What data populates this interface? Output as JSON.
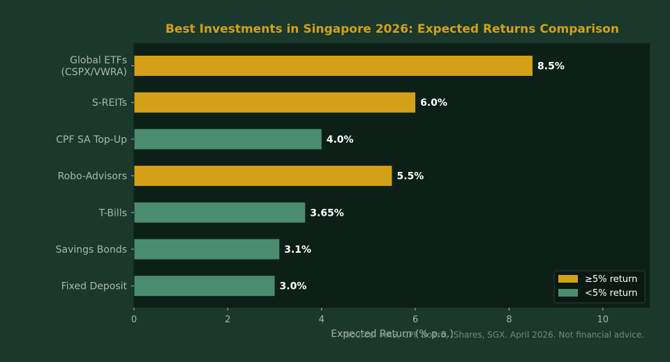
{
  "chart_data": {
    "type": "bar",
    "orientation": "horizontal",
    "title": "Best Investments in Singapore 2026: Expected Returns Comparison",
    "xlabel": "Expected Return (% p.a.)",
    "ylabel": "",
    "xlim": [
      0,
      11
    ],
    "xticks": [
      "0",
      "2",
      "4",
      "6",
      "8",
      "10"
    ],
    "grid": false,
    "legend_position": "bottom-right",
    "categories": [
      "Global ETFs\n(CSPX/VWRA)",
      "S-REITs",
      "CPF SA Top-Up",
      "Robo-Advisors",
      "T-Bills",
      "Savings Bonds",
      "Fixed Deposit"
    ],
    "values": [
      8.5,
      6.0,
      4.0,
      5.5,
      3.65,
      3.1,
      3.0
    ],
    "value_labels": [
      "8.5%",
      "6.0%",
      "4.0%",
      "5.5%",
      "3.65%",
      "3.1%",
      "3.0%"
    ],
    "groups": [
      "high",
      "high",
      "low",
      "high",
      "low",
      "low",
      "low"
    ],
    "legend": [
      {
        "key": "high",
        "label": "≥5% return",
        "color": "#d4a017"
      },
      {
        "key": "low",
        "label": "<5% return",
        "color": "#4a8c6f"
      }
    ],
    "source_note": "Source: MAS, CPF Board, iShares, SGX. April 2026. Not financial advice."
  },
  "colors": {
    "background": "#1a382c",
    "plot_background": "#0d2018",
    "title": "#d4a017",
    "axis_text": "#a8b8ae",
    "value_label": "#ffffff",
    "source_text": "#6e8a7c"
  }
}
